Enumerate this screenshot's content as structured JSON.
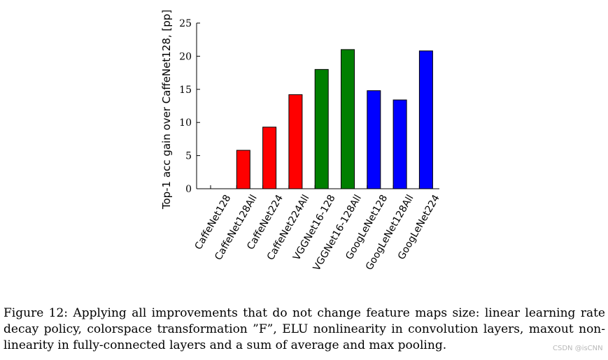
{
  "chart_data": {
    "type": "bar",
    "title": "",
    "xlabel": "",
    "ylabel": "Top-1 acc gain over CaffeNet128, [pp]",
    "ylim": [
      0,
      25
    ],
    "yticks": [
      0,
      5,
      10,
      15,
      20,
      25
    ],
    "grid": false,
    "categories": [
      "CaffeNet128",
      "CaffeNet128All",
      "CaffeNet224",
      "CaffeNet224All",
      "VGGNet16-128",
      "VGGNet16-128All",
      "GoogLeNet128",
      "GoogLeNet128All",
      "GoogLeNet224"
    ],
    "values": [
      0,
      5.8,
      9.3,
      14.2,
      18.0,
      21.0,
      14.8,
      13.4,
      20.8
    ],
    "colors": [
      "#ff0000",
      "#ff0000",
      "#ff0000",
      "#ff0000",
      "#007f00",
      "#007f00",
      "#0000ff",
      "#0000ff",
      "#0000ff"
    ]
  },
  "caption": "Figure 12: Applying all improvements that do not change feature maps size: linear learning rate decay policy, colorspace transformation ”F”, ELU nonlinearity in convolution layers, maxout non-linearity in fully-connected layers and a sum of average and max pooling.",
  "watermark": "CSDN @isCNN"
}
